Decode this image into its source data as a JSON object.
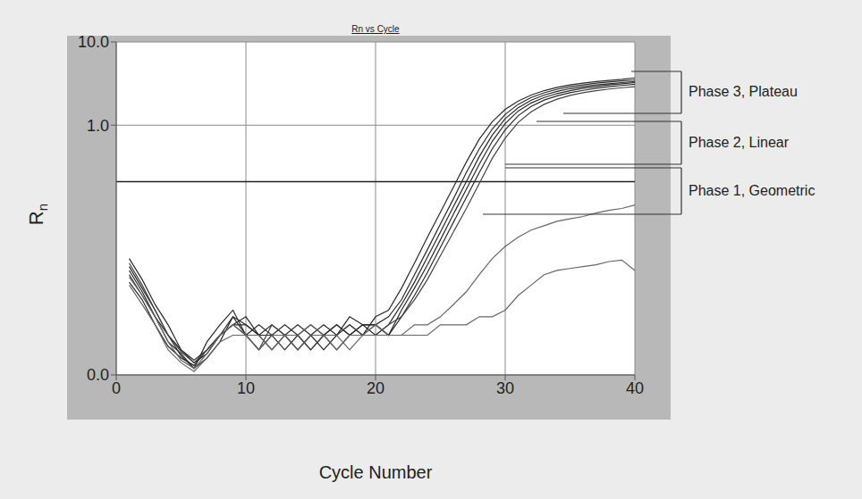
{
  "chart_data": {
    "type": "line",
    "title": "Rn vs Cycle",
    "x_label": "Cycle Number",
    "y_label": "Rn",
    "log": "y",
    "grid": true,
    "tick_labels": true,
    "x": [
      1,
      2,
      3,
      4,
      5,
      6,
      7,
      8,
      9,
      10,
      11,
      12,
      13,
      14,
      15,
      16,
      17,
      18,
      19,
      20,
      21,
      22,
      23,
      24,
      25,
      26,
      27,
      28,
      29,
      30,
      31,
      32,
      33,
      34,
      35,
      36,
      37,
      38,
      39,
      40
    ],
    "xlim": [
      0,
      40
    ],
    "xticks": [
      0,
      10,
      20,
      30,
      40
    ],
    "ylim": [
      0.001,
      10
    ],
    "yticks": [
      {
        "value": 0.001,
        "label": "0.0"
      },
      {
        "value": 1,
        "label": "1.0"
      },
      {
        "value": 10,
        "label": "10.0"
      }
    ],
    "threshold": 0.21,
    "annotations": [
      "Phase 3, Plateau",
      "Phase 2, Linear",
      "Phase 1, Geometric"
    ],
    "series": [
      {
        "color": "#2a2a2a",
        "values": [
          0.02,
          0.011,
          0.006,
          0.003,
          0.002,
          0.0015,
          0.002,
          0.003,
          0.005,
          0.004,
          0.003,
          0.004,
          0.003,
          0.002,
          0.003,
          0.004,
          0.003,
          0.004,
          0.003,
          0.005,
          0.006,
          0.011,
          0.022,
          0.045,
          0.09,
          0.18,
          0.36,
          0.68,
          1.1,
          1.55,
          1.95,
          2.3,
          2.6,
          2.85,
          3.05,
          3.2,
          3.35,
          3.45,
          3.55,
          3.7
        ]
      },
      {
        "color": "#2a2a2a",
        "values": [
          0.016,
          0.009,
          0.005,
          0.0025,
          0.0018,
          0.0012,
          0.0025,
          0.004,
          0.006,
          0.003,
          0.002,
          0.003,
          0.004,
          0.003,
          0.002,
          0.003,
          0.004,
          0.003,
          0.004,
          0.004,
          0.005,
          0.008,
          0.016,
          0.032,
          0.065,
          0.13,
          0.27,
          0.52,
          0.9,
          1.35,
          1.78,
          2.15,
          2.45,
          2.7,
          2.9,
          3.05,
          3.2,
          3.3,
          3.4,
          3.5
        ]
      },
      {
        "color": "#2a2a2a",
        "values": [
          0.025,
          0.014,
          0.007,
          0.004,
          0.002,
          0.0014,
          0.0018,
          0.003,
          0.004,
          0.005,
          0.003,
          0.002,
          0.003,
          0.004,
          0.003,
          0.002,
          0.003,
          0.005,
          0.004,
          0.003,
          0.004,
          0.007,
          0.013,
          0.026,
          0.052,
          0.105,
          0.21,
          0.42,
          0.76,
          1.2,
          1.62,
          2.0,
          2.3,
          2.55,
          2.75,
          2.9,
          3.05,
          3.15,
          3.25,
          3.35
        ]
      },
      {
        "color": "#2a2a2a",
        "values": [
          0.013,
          0.008,
          0.004,
          0.0022,
          0.0016,
          0.0013,
          0.002,
          0.003,
          0.004,
          0.004,
          0.003,
          0.003,
          0.002,
          0.003,
          0.004,
          0.003,
          0.002,
          0.003,
          0.004,
          0.004,
          0.003,
          0.006,
          0.011,
          0.021,
          0.042,
          0.085,
          0.17,
          0.34,
          0.64,
          1.05,
          1.48,
          1.85,
          2.15,
          2.4,
          2.6,
          2.78,
          2.92,
          3.05,
          3.15,
          3.25
        ]
      },
      {
        "color": "#2a2a2a",
        "values": [
          0.018,
          0.01,
          0.005,
          0.003,
          0.0017,
          0.0012,
          0.0016,
          0.0025,
          0.005,
          0.003,
          0.004,
          0.003,
          0.003,
          0.002,
          0.003,
          0.003,
          0.004,
          0.003,
          0.003,
          0.004,
          0.003,
          0.005,
          0.009,
          0.017,
          0.034,
          0.068,
          0.135,
          0.27,
          0.52,
          0.88,
          1.3,
          1.68,
          2.0,
          2.25,
          2.45,
          2.62,
          2.78,
          2.9,
          3.0,
          3.1
        ]
      },
      {
        "color": "#444444",
        "values": [
          0.022,
          0.012,
          0.006,
          0.003,
          0.0019,
          0.0014,
          0.002,
          0.003,
          0.004,
          0.003,
          0.002,
          0.004,
          0.003,
          0.003,
          0.002,
          0.003,
          0.003,
          0.004,
          0.003,
          0.003,
          0.004,
          0.005,
          0.008,
          0.014,
          0.027,
          0.052,
          0.1,
          0.2,
          0.4,
          0.7,
          1.08,
          1.45,
          1.78,
          2.05,
          2.28,
          2.45,
          2.6,
          2.72,
          2.82,
          2.9
        ]
      },
      {
        "color": "#666666",
        "values": [
          0.015,
          0.009,
          0.005,
          0.0025,
          0.0015,
          0.0012,
          0.0018,
          0.003,
          0.004,
          0.003,
          0.003,
          0.002,
          0.003,
          0.003,
          0.004,
          0.003,
          0.002,
          0.003,
          0.003,
          0.004,
          0.003,
          0.003,
          0.004,
          0.004,
          0.005,
          0.007,
          0.01,
          0.016,
          0.025,
          0.035,
          0.045,
          0.055,
          0.062,
          0.07,
          0.075,
          0.08,
          0.088,
          0.095,
          0.1,
          0.11
        ]
      },
      {
        "color": "#666666",
        "values": [
          0.012,
          0.007,
          0.004,
          0.002,
          0.0014,
          0.0011,
          0.0016,
          0.0025,
          0.003,
          0.003,
          0.002,
          0.003,
          0.003,
          0.002,
          0.003,
          0.003,
          0.003,
          0.002,
          0.003,
          0.003,
          0.003,
          0.003,
          0.003,
          0.003,
          0.004,
          0.004,
          0.004,
          0.005,
          0.005,
          0.006,
          0.009,
          0.012,
          0.016,
          0.018,
          0.019,
          0.02,
          0.021,
          0.023,
          0.024,
          0.018
        ]
      }
    ]
  }
}
